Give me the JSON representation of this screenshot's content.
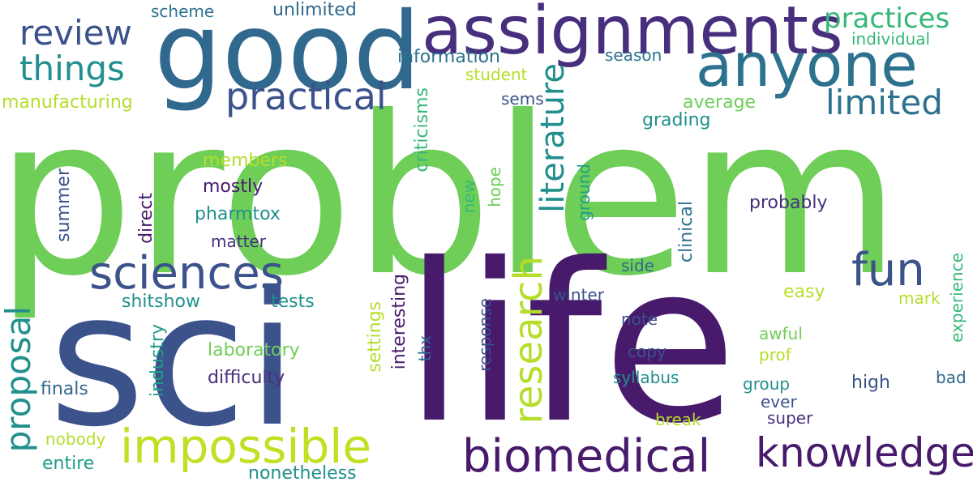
{
  "colors": {
    "dark_purple": "#481a6c",
    "purple": "#472f7d",
    "indigo": "#3b528b",
    "steel_blue": "#31688e",
    "blue_teal": "#2c728e",
    "teal": "#21908d",
    "sea_green": "#1f9e89",
    "green": "#35b779",
    "light_green": "#6ece58",
    "yellow_green": "#b5de2b",
    "lime": "#c2df23"
  },
  "words": [
    {
      "text": "problem",
      "color": "light_green"
    },
    {
      "text": "sci",
      "color": "indigo"
    },
    {
      "text": "life",
      "color": "dark_purple"
    },
    {
      "text": "good",
      "color": "steel_blue"
    },
    {
      "text": "assignments",
      "color": "purple"
    },
    {
      "text": "anyone",
      "color": "blue_teal"
    },
    {
      "text": "impossible",
      "color": "lime"
    },
    {
      "text": "sciences",
      "color": "indigo"
    },
    {
      "text": "biomedical",
      "color": "dark_purple"
    },
    {
      "text": "knowledge",
      "color": "dark_purple"
    },
    {
      "text": "practical",
      "color": "indigo"
    },
    {
      "text": "things",
      "color": "teal"
    },
    {
      "text": "review",
      "color": "indigo"
    },
    {
      "text": "fun",
      "color": "indigo"
    },
    {
      "text": "limited",
      "color": "blue_teal"
    },
    {
      "text": "practices",
      "color": "green"
    },
    {
      "text": "literature",
      "color": "teal"
    },
    {
      "text": "research",
      "color": "yellow_green"
    },
    {
      "text": "proposal",
      "color": "teal"
    },
    {
      "text": "scheme",
      "color": "blue_teal"
    },
    {
      "text": "unlimited",
      "color": "steel_blue"
    },
    {
      "text": "information",
      "color": "blue_teal"
    },
    {
      "text": "season",
      "color": "blue_teal"
    },
    {
      "text": "individual",
      "color": "green"
    },
    {
      "text": "student",
      "color": "yellow_green"
    },
    {
      "text": "manufacturing",
      "color": "yellow_green"
    },
    {
      "text": "sems",
      "color": "indigo"
    },
    {
      "text": "average",
      "color": "light_green"
    },
    {
      "text": "grading",
      "color": "teal"
    },
    {
      "text": "criticisms",
      "color": "green"
    },
    {
      "text": "members",
      "color": "yellow_green"
    },
    {
      "text": "mostly",
      "color": "dark_purple"
    },
    {
      "text": "pharmtox",
      "color": "teal"
    },
    {
      "text": "matter",
      "color": "purple"
    },
    {
      "text": "summer",
      "color": "indigo"
    },
    {
      "text": "direct",
      "color": "dark_purple"
    },
    {
      "text": "new",
      "color": "green"
    },
    {
      "text": "hope",
      "color": "light_green"
    },
    {
      "text": "ground",
      "color": "sea_green"
    },
    {
      "text": "clinical",
      "color": "blue_teal"
    },
    {
      "text": "probably",
      "color": "purple"
    },
    {
      "text": "side",
      "color": "steel_blue"
    },
    {
      "text": "winter",
      "color": "indigo"
    },
    {
      "text": "note",
      "color": "indigo"
    },
    {
      "text": "copy",
      "color": "indigo"
    },
    {
      "text": "easy",
      "color": "yellow_green"
    },
    {
      "text": "mark",
      "color": "yellow_green"
    },
    {
      "text": "experience",
      "color": "green"
    },
    {
      "text": "awful",
      "color": "light_green"
    },
    {
      "text": "prof",
      "color": "yellow_green"
    },
    {
      "text": "group",
      "color": "teal"
    },
    {
      "text": "ever",
      "color": "indigo"
    },
    {
      "text": "high",
      "color": "indigo"
    },
    {
      "text": "bad",
      "color": "steel_blue"
    },
    {
      "text": "super",
      "color": "purple"
    },
    {
      "text": "break",
      "color": "yellow_green"
    },
    {
      "text": "syllabus",
      "color": "teal"
    },
    {
      "text": "response",
      "color": "indigo"
    },
    {
      "text": "thx",
      "color": "steel_blue"
    },
    {
      "text": "interesting",
      "color": "dark_purple"
    },
    {
      "text": "settings",
      "color": "yellow_green"
    },
    {
      "text": "industry",
      "color": "sea_green"
    },
    {
      "text": "difficulty",
      "color": "purple"
    },
    {
      "text": "laboratory",
      "color": "light_green"
    },
    {
      "text": "shitshow",
      "color": "teal"
    },
    {
      "text": "tests",
      "color": "teal"
    },
    {
      "text": "finals",
      "color": "steel_blue"
    },
    {
      "text": "nobody",
      "color": "yellow_green"
    },
    {
      "text": "entire",
      "color": "sea_green"
    },
    {
      "text": "nonetheless",
      "color": "teal"
    }
  ]
}
